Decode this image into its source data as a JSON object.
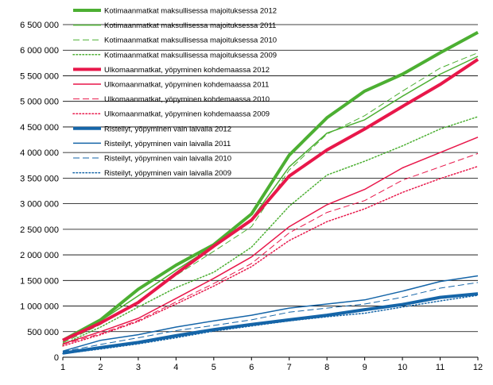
{
  "chart_data": {
    "type": "line",
    "x": [
      1,
      2,
      3,
      4,
      5,
      6,
      7,
      8,
      9,
      10,
      11,
      12
    ],
    "xlim": [
      1,
      12
    ],
    "ylim": [
      0,
      6500000
    ],
    "yticks": [
      0,
      500000,
      1000000,
      1500000,
      2000000,
      2500000,
      3000000,
      3500000,
      4000000,
      4500000,
      5000000,
      5500000,
      6000000,
      6500000
    ],
    "ytick_labels": [
      "0",
      "500 000",
      "1 000 000",
      "1 500 000",
      "2 000 000",
      "2 500 000",
      "3 000 000",
      "3 500 000",
      "4 000 000",
      "4 500 000",
      "5 000 000",
      "5 500 000",
      "6 000 000",
      "6 500 000"
    ],
    "xtick_labels": [
      "1",
      "2",
      "3",
      "4",
      "5",
      "6",
      "7",
      "8",
      "9",
      "10",
      "11",
      "12"
    ],
    "grid": "horizontal",
    "legend_position": "top-left",
    "series": [
      {
        "name": "Kotimaanmatkat maksullisessa majoituksessa 2012",
        "color": "#4caf32",
        "width": 4,
        "dash": "solid",
        "values": [
          330000,
          730000,
          1330000,
          1800000,
          2200000,
          2800000,
          3950000,
          4680000,
          5200000,
          5530000,
          5950000,
          6350000
        ]
      },
      {
        "name": "Kotimaanmatkat maksullisessa majoituksessa 2011",
        "color": "#4caf32",
        "width": 1.5,
        "dash": "solid",
        "values": [
          300000,
          710000,
          1200000,
          1700000,
          2170000,
          2700000,
          3720000,
          4380000,
          4640000,
          5100000,
          5530000,
          5880000
        ]
      },
      {
        "name": "Kotimaanmatkat maksullisessa majoituksessa 2010",
        "color": "#4caf32",
        "width": 1,
        "dash": "dashed",
        "values": [
          280000,
          640000,
          1100000,
          1600000,
          2070000,
          2550000,
          3660000,
          4360000,
          4720000,
          5200000,
          5650000,
          5950000
        ]
      },
      {
        "name": "Kotimaanmatkat maksullisessa majoituksessa 2009",
        "color": "#4caf32",
        "width": 1.5,
        "dash": "dotted",
        "values": [
          250000,
          590000,
          980000,
          1360000,
          1660000,
          2150000,
          2950000,
          3560000,
          3830000,
          4130000,
          4460000,
          4700000
        ]
      },
      {
        "name": "Ulkomaanmatkat, yöpyminen kohdemaassa 2012",
        "color": "#e8174a",
        "width": 4,
        "dash": "solid",
        "values": [
          330000,
          670000,
          1070000,
          1630000,
          2170000,
          2680000,
          3540000,
          4050000,
          4460000,
          4900000,
          5330000,
          5820000
        ]
      },
      {
        "name": "Ulkomaanmatkat, yöpyminen kohdemaassa 2011",
        "color": "#e8174a",
        "width": 1.5,
        "dash": "solid",
        "values": [
          260000,
          500000,
          760000,
          1150000,
          1540000,
          1960000,
          2550000,
          2980000,
          3280000,
          3700000,
          4000000,
          4300000
        ]
      },
      {
        "name": "Ulkomaanmatkat, yöpyminen kohdemaassa 2010",
        "color": "#e8174a",
        "width": 1,
        "dash": "dashed",
        "values": [
          250000,
          460000,
          720000,
          1080000,
          1440000,
          1830000,
          2430000,
          2830000,
          3060000,
          3460000,
          3720000,
          3980000
        ]
      },
      {
        "name": "Ulkomaanmatkat, yöpyminen kohdemaassa 2009",
        "color": "#e8174a",
        "width": 1.5,
        "dash": "dotted",
        "values": [
          220000,
          440000,
          700000,
          1040000,
          1390000,
          1770000,
          2280000,
          2650000,
          2900000,
          3220000,
          3490000,
          3730000
        ]
      },
      {
        "name": "Risteilyt, yöpyminen vain laivalla 2012",
        "color": "#1565a8",
        "width": 4,
        "dash": "solid",
        "values": [
          80000,
          190000,
          290000,
          420000,
          540000,
          640000,
          730000,
          820000,
          930000,
          1030000,
          1170000,
          1240000
        ]
      },
      {
        "name": "Risteilyt, yöpyminen vain laivalla 2011",
        "color": "#1565a8",
        "width": 1.5,
        "dash": "solid",
        "values": [
          120000,
          330000,
          440000,
          590000,
          710000,
          820000,
          960000,
          1040000,
          1120000,
          1290000,
          1480000,
          1590000
        ]
      },
      {
        "name": "Risteilyt, yöpyminen vain laivalla 2010",
        "color": "#1565a8",
        "width": 1,
        "dash": "dashed",
        "values": [
          110000,
          250000,
          380000,
          520000,
          620000,
          730000,
          880000,
          960000,
          1040000,
          1170000,
          1350000,
          1460000
        ]
      },
      {
        "name": "Risteilyt, yöpyminen vain laivalla 2009",
        "color": "#1565a8",
        "width": 1.5,
        "dash": "dotted",
        "values": [
          70000,
          160000,
          260000,
          380000,
          510000,
          610000,
          710000,
          790000,
          860000,
          980000,
          1100000,
          1210000
        ]
      }
    ]
  }
}
